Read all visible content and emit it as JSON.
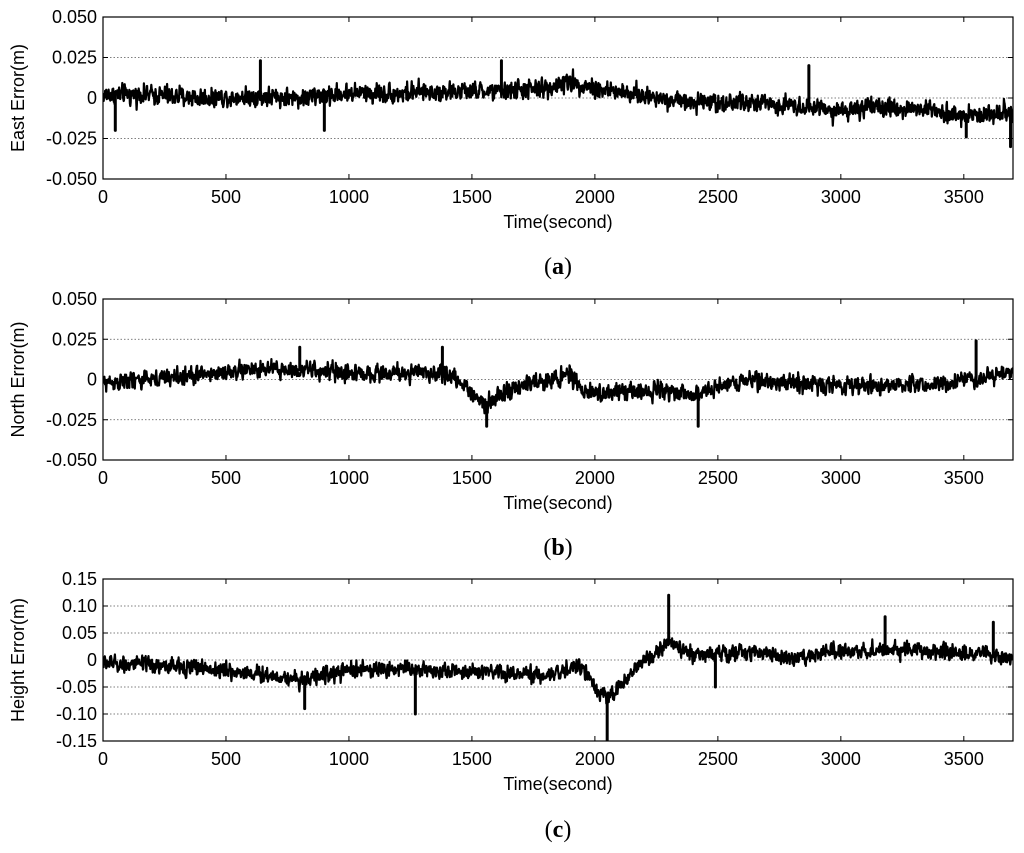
{
  "chart_data": [
    {
      "type": "line",
      "ylabel": "East Error(m)",
      "xlabel": "Time(second)",
      "caption": "a",
      "xlim": [
        0,
        3700
      ],
      "ylim": [
        -0.05,
        0.05
      ],
      "xticks": [
        0,
        500,
        1000,
        1500,
        2000,
        2500,
        3000,
        3500
      ],
      "xtick_labels": [
        "0",
        "500",
        "1000",
        "1500",
        "2000",
        "2500",
        "3000",
        "3500"
      ],
      "yticks": [
        0.05,
        0.025,
        0,
        -0.025,
        -0.05
      ],
      "ytick_labels": [
        "0.050",
        "0.025",
        "0",
        "-0.025",
        "-0.050"
      ],
      "grid": "horizontal dotted",
      "series_color": "#000000",
      "trend": {
        "x": [
          0,
          200,
          400,
          600,
          800,
          1000,
          1200,
          1400,
          1600,
          1800,
          1900,
          2000,
          2200,
          2400,
          2600,
          2800,
          3000,
          3200,
          3400,
          3500,
          3600,
          3700
        ],
        "y": [
          0.002,
          0.002,
          0.0,
          0.001,
          0.0,
          0.003,
          0.003,
          0.004,
          0.004,
          0.006,
          0.01,
          0.006,
          0.001,
          -0.002,
          -0.003,
          -0.004,
          -0.008,
          -0.006,
          -0.007,
          -0.012,
          -0.01,
          -0.008
        ]
      },
      "noise_amplitude": 0.012,
      "spikes": [
        {
          "x": 640,
          "y": 0.023
        },
        {
          "x": 1620,
          "y": 0.023
        },
        {
          "x": 3690,
          "y": -0.03
        },
        {
          "x": 3510,
          "y": -0.024
        },
        {
          "x": 900,
          "y": -0.02
        },
        {
          "x": 50,
          "y": -0.02
        },
        {
          "x": 2870,
          "y": 0.02
        }
      ]
    },
    {
      "type": "line",
      "ylabel": "North Error(m)",
      "xlabel": "Time(second)",
      "caption": "b",
      "xlim": [
        0,
        3700
      ],
      "ylim": [
        -0.05,
        0.05
      ],
      "xticks": [
        0,
        500,
        1000,
        1500,
        2000,
        2500,
        3000,
        3500
      ],
      "xtick_labels": [
        "0",
        "500",
        "1000",
        "1500",
        "2000",
        "2500",
        "3000",
        "3500"
      ],
      "yticks": [
        0.05,
        0.025,
        0,
        -0.025,
        -0.05
      ],
      "ytick_labels": [
        "0.050",
        "0.025",
        "0",
        "-0.025",
        "-0.050"
      ],
      "grid": "horizontal dotted",
      "series_color": "#000000",
      "trend": {
        "x": [
          0,
          200,
          400,
          600,
          800,
          1000,
          1200,
          1400,
          1500,
          1550,
          1700,
          1900,
          1950,
          2100,
          2300,
          2400,
          2600,
          2800,
          3000,
          3200,
          3400,
          3600,
          3700
        ],
        "y": [
          -0.002,
          0.0,
          0.003,
          0.006,
          0.006,
          0.004,
          0.004,
          0.004,
          -0.008,
          -0.015,
          -0.004,
          0.003,
          -0.008,
          -0.008,
          -0.006,
          -0.01,
          0.0,
          -0.002,
          -0.004,
          -0.003,
          -0.003,
          0.002,
          0.004
        ]
      },
      "noise_amplitude": 0.011,
      "spikes": [
        {
          "x": 3550,
          "y": 0.024
        },
        {
          "x": 1560,
          "y": -0.029
        },
        {
          "x": 2420,
          "y": -0.029
        },
        {
          "x": 800,
          "y": 0.02
        },
        {
          "x": 1380,
          "y": 0.02
        }
      ]
    },
    {
      "type": "line",
      "ylabel": "Height Error(m)",
      "xlabel": "Time(second)",
      "caption": "c",
      "xlim": [
        0,
        3700
      ],
      "ylim": [
        -0.15,
        0.15
      ],
      "xticks": [
        0,
        500,
        1000,
        1500,
        2000,
        2500,
        3000,
        3500
      ],
      "xtick_labels": [
        "0",
        "500",
        "1000",
        "1500",
        "2000",
        "2500",
        "3000",
        "3500"
      ],
      "yticks": [
        0.15,
        0.1,
        0.05,
        0,
        -0.05,
        -0.1,
        -0.15
      ],
      "ytick_labels": [
        "0.15",
        "0.10",
        "0.05",
        "0",
        "-0.05",
        "-0.10",
        "-0.15"
      ],
      "grid": "horizontal dotted",
      "series_color": "#000000",
      "trend": {
        "x": [
          0,
          200,
          400,
          600,
          800,
          1000,
          1200,
          1400,
          1600,
          1800,
          1950,
          2000,
          2050,
          2100,
          2200,
          2300,
          2400,
          2600,
          2800,
          3000,
          3200,
          3400,
          3600,
          3700
        ],
        "y": [
          -0.005,
          -0.01,
          -0.015,
          -0.025,
          -0.035,
          -0.02,
          -0.015,
          -0.02,
          -0.025,
          -0.03,
          -0.01,
          -0.05,
          -0.07,
          -0.05,
          0.0,
          0.03,
          0.01,
          0.015,
          0.005,
          0.015,
          0.02,
          0.015,
          0.01,
          0.0
        ]
      },
      "noise_amplitude": 0.03,
      "spikes": [
        {
          "x": 2050,
          "y": -0.15
        },
        {
          "x": 2300,
          "y": 0.12
        },
        {
          "x": 1270,
          "y": -0.1
        },
        {
          "x": 820,
          "y": -0.09
        },
        {
          "x": 3620,
          "y": 0.07
        },
        {
          "x": 3180,
          "y": 0.08
        },
        {
          "x": 2490,
          "y": -0.05
        }
      ]
    }
  ]
}
